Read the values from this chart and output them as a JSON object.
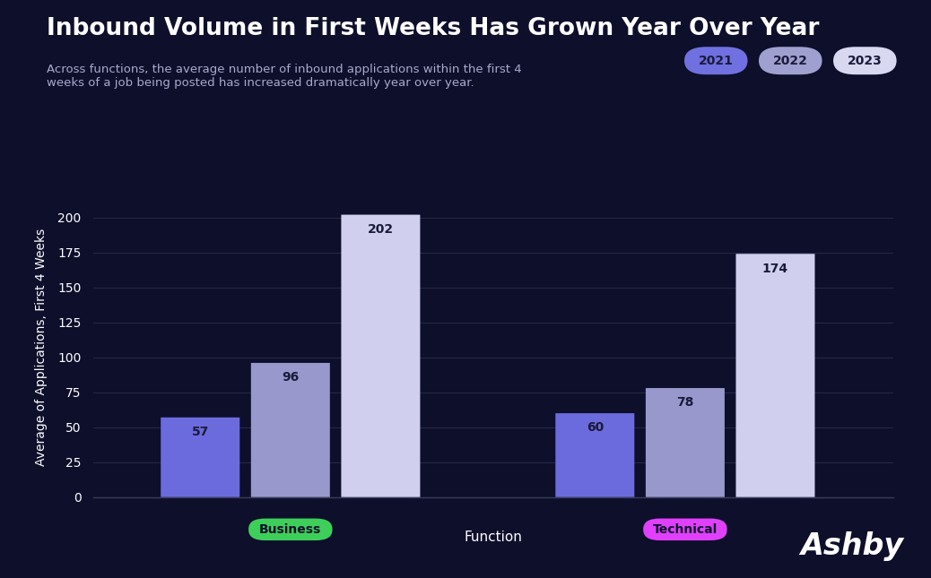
{
  "title": "Inbound Volume in First Weeks Has Grown Year Over Year",
  "subtitle": "Across functions, the average number of inbound applications within the first 4\nweeks of a job being posted has increased dramatically year over year.",
  "xlabel": "Function",
  "ylabel": "Average of Applications, First 4 Weeks",
  "background_color": "#0d0f2b",
  "text_color": "#ffffff",
  "subtitle_color": "#aaaacc",
  "grid_color": "#252845",
  "axis_color": "#3a3d5a",
  "groups": [
    "Business",
    "Technical"
  ],
  "group_label_colors": [
    "#3ecf5a",
    "#e040fb"
  ],
  "group_label_text_color": "#0d0f2b",
  "years": [
    "2021",
    "2022",
    "2023"
  ],
  "year_colors": [
    "#6b6bde",
    "#9898cc",
    "#d0d0ee"
  ],
  "year_legend_bg": [
    "#7070e0",
    "#a0a0d0",
    "#d8d8f0"
  ],
  "values": {
    "Business": [
      57,
      96,
      202
    ],
    "Technical": [
      60,
      78,
      174
    ]
  },
  "ylim": [
    0,
    215
  ],
  "yticks": [
    0,
    25,
    50,
    75,
    100,
    125,
    150,
    175,
    200
  ],
  "bar_width": 0.14,
  "value_text_color": "#1a1a3a",
  "ashby_text": "Ashby",
  "ashby_color": "#ffffff"
}
